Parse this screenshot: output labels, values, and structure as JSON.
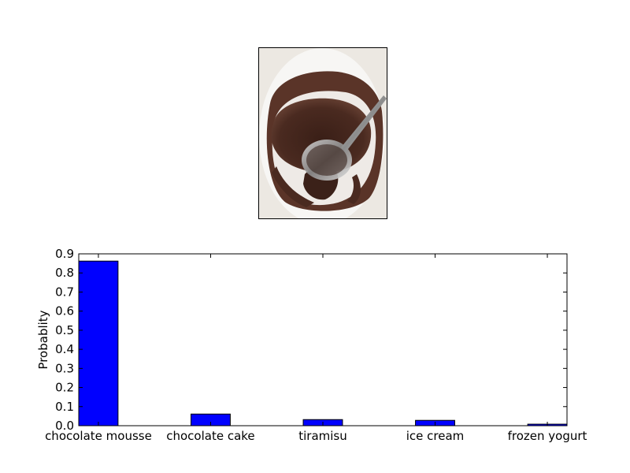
{
  "photo": {
    "subject": "mug of chocolate cake with a spoon"
  },
  "chart_data": {
    "type": "bar",
    "categories": [
      "chocolate mousse",
      "chocolate cake",
      "tiramisu",
      "ice cream",
      "frozen yogurt"
    ],
    "values": [
      0.862,
      0.061,
      0.032,
      0.028,
      0.008
    ],
    "title": "",
    "xlabel": "",
    "ylabel": "Probablity",
    "ylim": [
      0,
      0.9
    ],
    "yticks": [
      "0.0",
      "0.1",
      "0.2",
      "0.3",
      "0.4",
      "0.5",
      "0.6",
      "0.7",
      "0.8",
      "0.9"
    ],
    "bar_color": "#0000ff",
    "grid": false,
    "legend": "none"
  }
}
